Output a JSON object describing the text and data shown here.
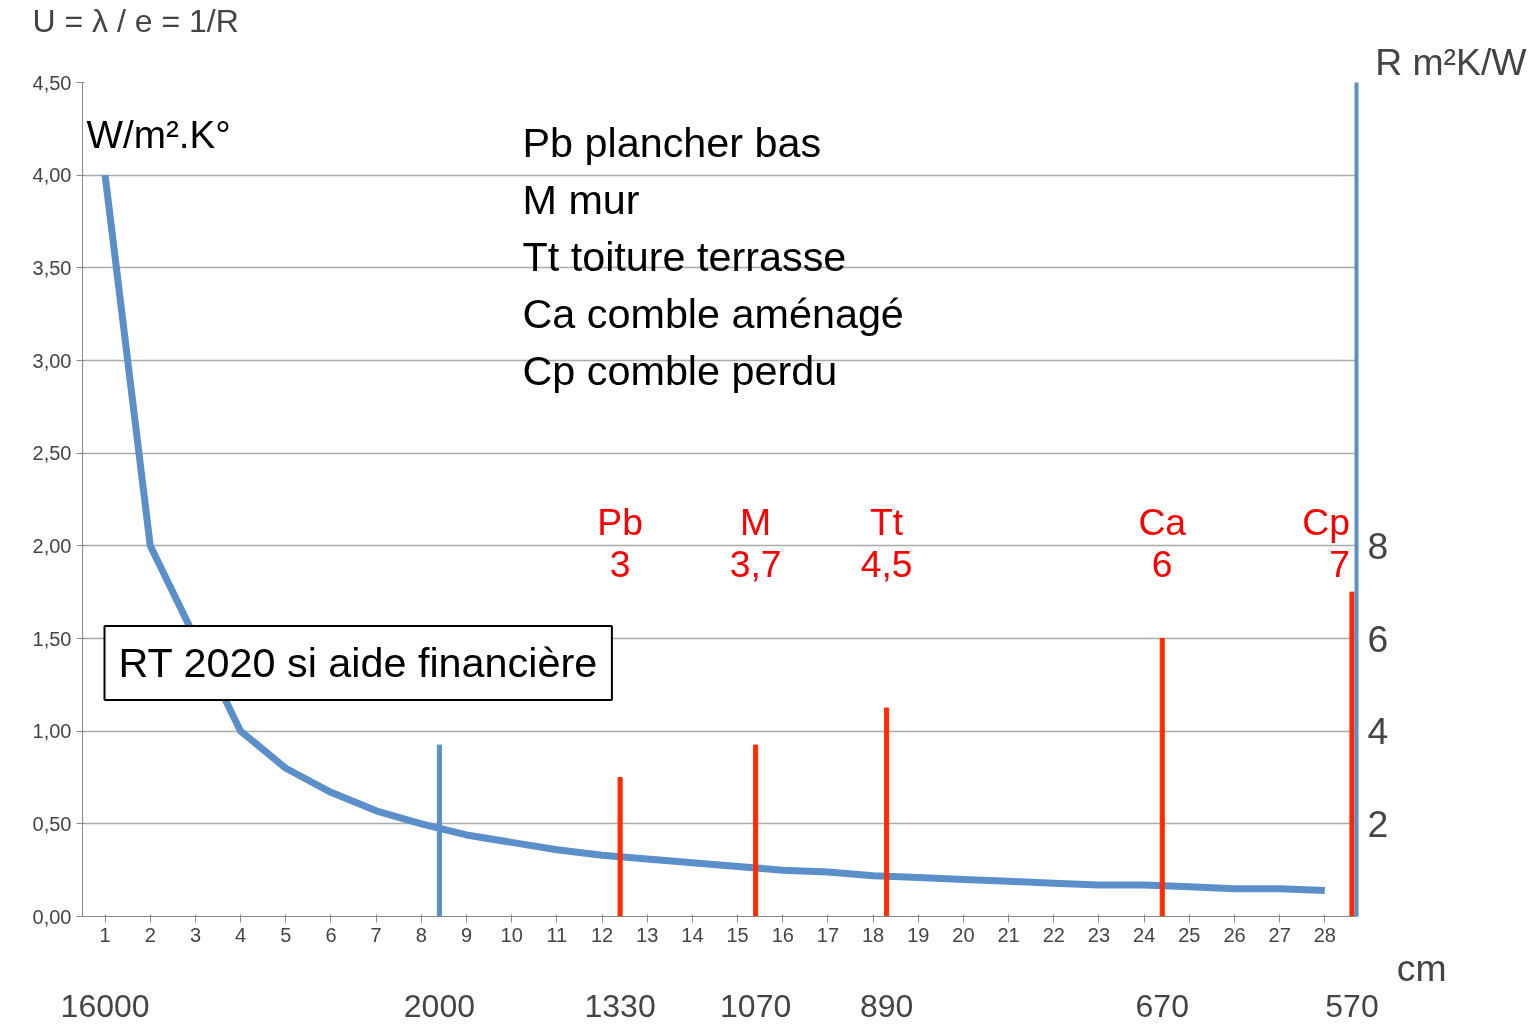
{
  "chart_data": {
    "type": "line",
    "title": "U = λ / e = 1/R",
    "ylabel": "W/m².K°",
    "y2label": "R m²K/W",
    "xlabel": "cm",
    "xlim": [
      0.5,
      28.7
    ],
    "xticks": [
      1,
      2,
      3,
      4,
      5,
      6,
      7,
      8,
      9,
      10,
      11,
      12,
      13,
      14,
      15,
      16,
      17,
      18,
      19,
      20,
      21,
      22,
      23,
      24,
      25,
      26,
      27,
      28
    ],
    "ylim": [
      0,
      4.5
    ],
    "yticks": [
      {
        "value": 0,
        "label": "0,00"
      },
      {
        "value": 0.5,
        "label": "0,50"
      },
      {
        "value": 1,
        "label": "1,00"
      },
      {
        "value": 1.5,
        "label": "1,50"
      },
      {
        "value": 2,
        "label": "2,00"
      },
      {
        "value": 2.5,
        "label": "2,50"
      },
      {
        "value": 3,
        "label": "3,00"
      },
      {
        "value": 3.5,
        "label": "3,50"
      },
      {
        "value": 4,
        "label": "4,00"
      },
      {
        "value": 4.5,
        "label": "4,50"
      }
    ],
    "y2lim": [
      0,
      18
    ],
    "y2ticks": [
      2,
      4,
      6,
      8
    ],
    "grid": "y",
    "line_style": "solid",
    "series": [
      {
        "color": "#5b8fc9",
        "x": [
          1,
          2,
          3,
          4,
          5,
          6,
          7,
          8,
          9,
          10,
          11,
          12,
          13,
          14,
          15,
          16,
          17,
          18,
          19,
          20,
          21,
          22,
          23,
          24,
          25,
          26,
          27,
          28
        ],
        "values": [
          4.0,
          2.0,
          null,
          1.0,
          0.8,
          0.67,
          0.57,
          0.5,
          0.44,
          0.4,
          0.36,
          0.33,
          0.31,
          0.29,
          0.27,
          0.25,
          0.24,
          0.22,
          0.21,
          0.2,
          0.19,
          0.18,
          0.17,
          0.17,
          0.16,
          0.15,
          0.15,
          0.14
        ]
      },
      {
        "type": "bar",
        "axis": "y2",
        "color": "#5b8fc9",
        "x": [
          8.4
        ],
        "values": [
          3.7
        ]
      },
      {
        "type": "bar",
        "axis": "y2",
        "color": "#ff2a00",
        "x": [
          12.4,
          15.4,
          18.3,
          24.4,
          28.6
        ],
        "values": [
          3,
          3.7,
          4.5,
          6,
          7
        ]
      }
    ],
    "annotations": [
      "Pb plancher bas",
      "M mur",
      "Tt toiture terrasse",
      "Ca comble aménagé",
      "Cp comble perdu",
      "RT 2020 si aide financière",
      "16000",
      "2000",
      "1330",
      "1070",
      "890",
      "670",
      "570",
      "Pb",
      "3",
      "M",
      "3,7",
      "Tt",
      "4,5",
      "Ca",
      "6",
      "Cp",
      "7"
    ]
  }
}
